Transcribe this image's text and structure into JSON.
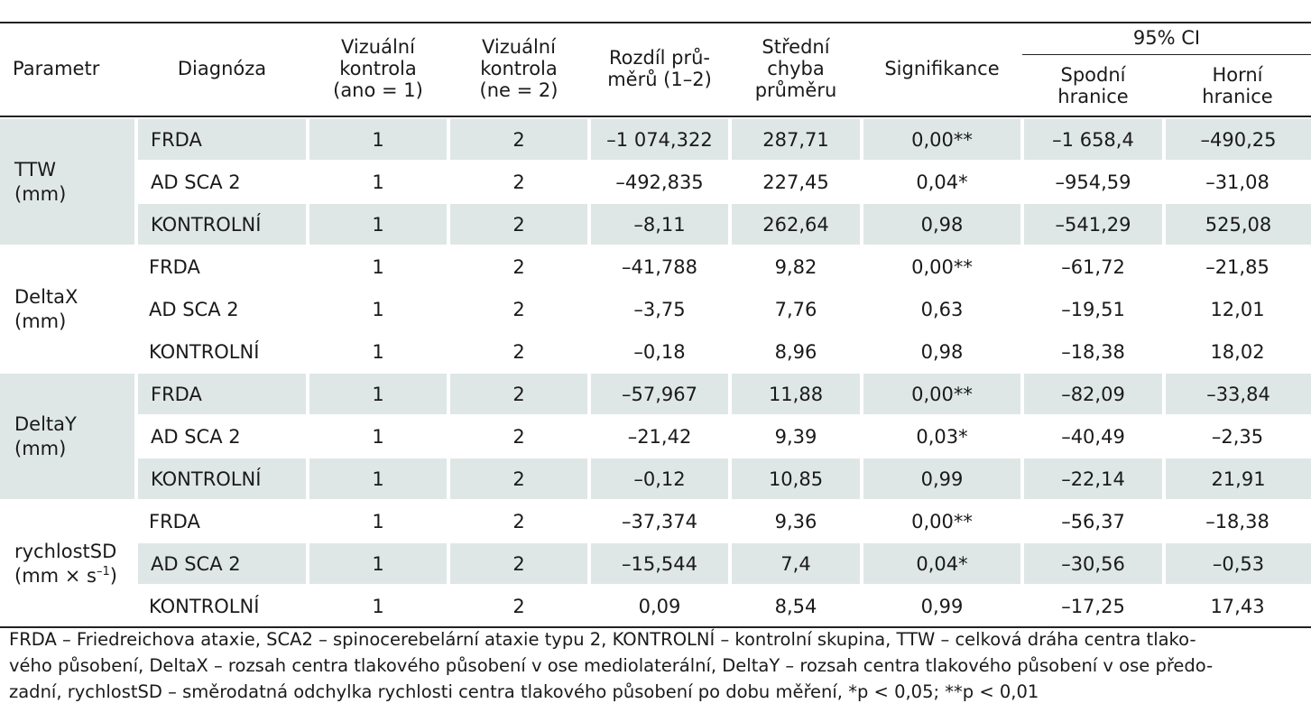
{
  "headers": {
    "parametr": "Parametr",
    "diagnoza": "Diagnóza",
    "vizualni_ano_1": "Vizuální",
    "vizualni_ano_2": "kontrola",
    "vizualni_ano_3": "(ano = 1)",
    "vizualni_ne_1": "Vizuální",
    "vizualni_ne_2": "kontrola",
    "vizualni_ne_3": "(ne = 2)",
    "rozdil_1": "Rozdíl prů-",
    "rozdil_2": "měrů (1–2)",
    "stredni_1": "Střední",
    "stredni_2": "chyba",
    "stredni_3": "průměru",
    "signifikance": "Signifikance",
    "ci": "95% CI",
    "spodni_1": "Spodní",
    "spodni_2": "hranice",
    "horni_1": "Horní",
    "horni_2": "hranice"
  },
  "groups": [
    {
      "param_line1": "TTW",
      "param_line2": "(mm)",
      "rows": [
        [
          "FRDA",
          "1",
          "2",
          "–1 074,322",
          "287,71",
          "0,00**",
          "–1 658,4",
          "–490,25"
        ],
        [
          "AD SCA 2",
          "1",
          "2",
          "–492,835",
          "227,45",
          "0,04*",
          "–954,59",
          "–31,08"
        ],
        [
          "KONTROLNÍ",
          "1",
          "2",
          "–8,11",
          "262,64",
          "0,98",
          "–541,29",
          "525,08"
        ]
      ]
    },
    {
      "param_line1": "DeltaX",
      "param_line2": "(mm)",
      "rows": [
        [
          "FRDA",
          "1",
          "2",
          "–41,788",
          "9,82",
          "0,00**",
          "–61,72",
          "–21,85"
        ],
        [
          "AD SCA 2",
          "1",
          "2",
          "–3,75",
          "7,76",
          "0,63",
          "–19,51",
          "12,01"
        ],
        [
          "KONTROLNÍ",
          "1",
          "2",
          "–0,18",
          "8,96",
          "0,98",
          "–18,38",
          "18,02"
        ]
      ]
    },
    {
      "param_line1": "DeltaY",
      "param_line2": "(mm)",
      "rows": [
        [
          "FRDA",
          "1",
          "2",
          "–57,967",
          "11,88",
          "0,00**",
          "–82,09",
          "–33,84"
        ],
        [
          "AD SCA 2",
          "1",
          "2",
          "–21,42",
          "9,39",
          "0,03*",
          "–40,49",
          "–2,35"
        ],
        [
          "KONTROLNÍ",
          "1",
          "2",
          "–0,12",
          "10,85",
          "0,99",
          "–22,14",
          "21,91"
        ]
      ]
    },
    {
      "param_line1": "rychlostSD",
      "param_line2": "(mm × s",
      "param_sup": "–1",
      "param_close": ")",
      "rows": [
        [
          "FRDA",
          "1",
          "2",
          "–37,374",
          "9,36",
          "0,00**",
          "–56,37",
          "–18,38"
        ],
        [
          "AD SCA 2",
          "1",
          "2",
          "–15,544",
          "7,4",
          "0,04*",
          "–30,56",
          "–0,53"
        ],
        [
          "KONTROLNÍ",
          "1",
          "2",
          "0,09",
          "8,54",
          "0,99",
          "–17,25",
          "17,43"
        ]
      ]
    }
  ],
  "footnote": {
    "line1": "FRDA – Friedreichova ataxie, SCA2 – spinocerebelární ataxie typu 2, KONTROLNÍ – kontrolní skupina, TTW – celková dráha centra tlako-",
    "line2": "vého působení, DeltaX – rozsah centra tlakového působení v ose mediolaterální, DeltaY – rozsah centra tlakového působení v ose předo-",
    "line3": "zadní, rychlostSD – směrodatná odchylka rychlosti centra tlakového působení po dobu měření, *p < 0,05; **p < 0,01"
  },
  "colors": {
    "shade": "#dfe7e6",
    "rule": "#222222",
    "text": "#1a1a1a"
  }
}
